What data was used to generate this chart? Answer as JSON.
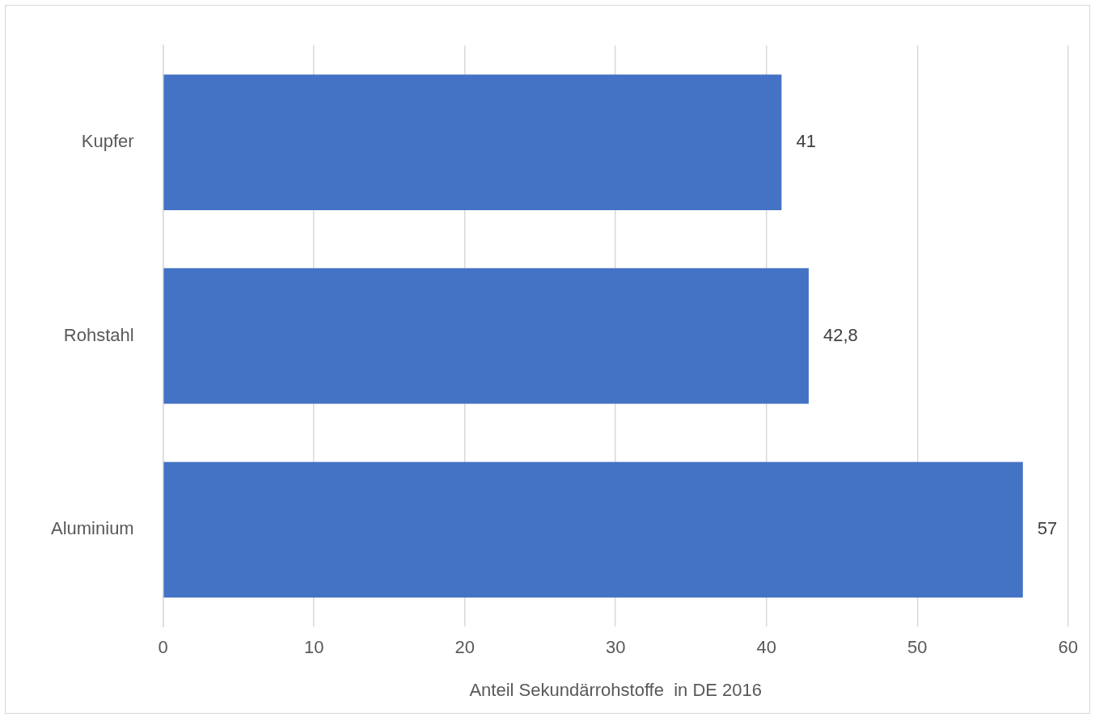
{
  "chart_data": {
    "type": "bar",
    "orientation": "horizontal",
    "categories": [
      "Kupfer",
      "Rohstahl",
      "Aluminium"
    ],
    "values": [
      41,
      42.8,
      57
    ],
    "value_labels": [
      "41",
      "42,8",
      "57"
    ],
    "color": "#4472c4",
    "xlabel": "Anteil Sekundärrohstoffe  in DE 2016",
    "xlim": [
      0,
      60
    ],
    "xticks": [
      0,
      10,
      20,
      30,
      40,
      50,
      60
    ],
    "grid": "x",
    "legend": false
  }
}
